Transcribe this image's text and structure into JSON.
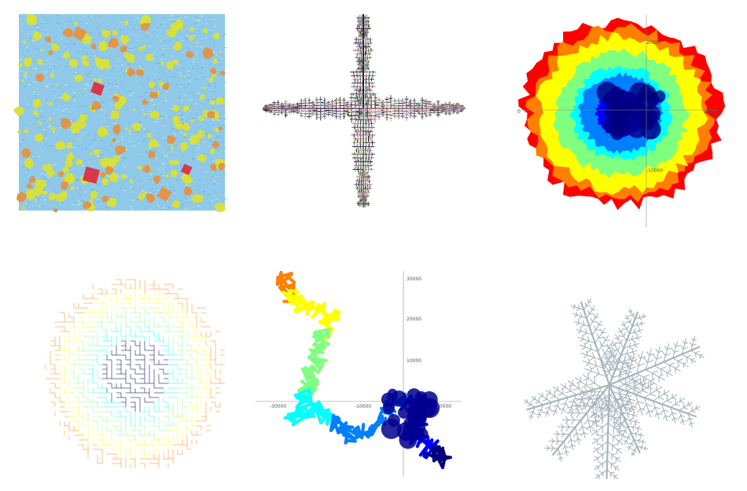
{
  "panels": [
    {
      "name": "random-growth-squares"
    },
    {
      "name": "cross-dendrite"
    },
    {
      "name": "eden-cluster-heatmap",
      "axis_labels": {
        "y_top": "20000",
        "x_right": "20000",
        "y_bottom": "-10000",
        "x_left": "0"
      }
    },
    {
      "name": "maze-growth-cluster"
    },
    {
      "name": "random-walk-trajectory",
      "axis_labels": {
        "y1": "30000",
        "y2": "20000",
        "y3": "10000",
        "x1": "-30000",
        "x2": "-10000",
        "x3": "10000"
      }
    },
    {
      "name": "snowflake-dendrite"
    }
  ],
  "colors": {
    "background": "#ffffff",
    "jet": [
      "#00007f",
      "#0000ff",
      "#007fff",
      "#00ffff",
      "#7fff7f",
      "#ffff00",
      "#ff7f00",
      "#ff0000"
    ],
    "tile_base": "#8ec9ea",
    "tile_yellow": "#d8e03a",
    "tile_orange": "#e0954a",
    "tile_red": "#d8384a",
    "gray_branch": "#a8b4bc"
  }
}
